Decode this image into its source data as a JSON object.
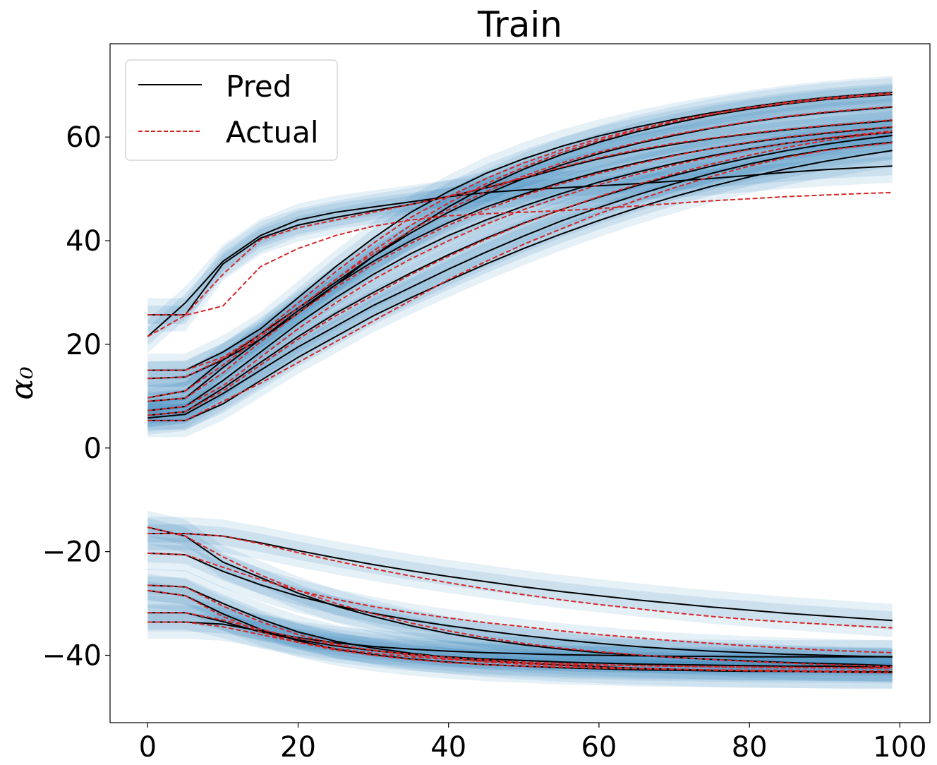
{
  "chart_data": {
    "type": "line",
    "title": "Train",
    "xlabel": "",
    "ylabel": "α₀",
    "xlim": [
      -5,
      104
    ],
    "ylim": [
      -53,
      78
    ],
    "xticks": [
      0,
      20,
      40,
      60,
      80,
      100
    ],
    "yticks": [
      -40,
      -20,
      0,
      20,
      40,
      60
    ],
    "xtick_labels": [
      "0",
      "20",
      "40",
      "60",
      "80",
      "100"
    ],
    "ytick_labels": [
      "−40",
      "−20",
      "0",
      "20",
      "40",
      "60"
    ],
    "grid": false,
    "legend_position": "top-left",
    "legend": [
      {
        "label": "Pred",
        "color": "#000000",
        "style": "solid"
      },
      {
        "label": "Actual",
        "color": "#d62728",
        "style": "dashed"
      }
    ],
    "band_color": "#1f77b4",
    "band_halfwidth": 3.2,
    "x": [
      0,
      5,
      10,
      15,
      20,
      25,
      30,
      35,
      40,
      45,
      50,
      55,
      60,
      65,
      70,
      75,
      80,
      85,
      90,
      95,
      99
    ],
    "series": [
      {
        "pred": [
          21.5,
          28,
          36,
          41,
          44,
          45.5,
          46.5,
          47.5,
          48.5,
          49.3,
          49.8,
          50.2,
          50.6,
          51,
          51.5,
          52,
          52.6,
          53.2,
          53.7,
          54.1,
          54.4
        ],
        "actual": [
          21.5,
          25.6,
          27.4,
          35,
          38.5,
          41,
          42.8,
          44,
          44.8,
          45.2,
          45.5,
          45.8,
          46.2,
          46.7,
          47.2,
          47.7,
          48.1,
          48.5,
          48.8,
          49.1,
          49.3
        ]
      },
      {
        "pred": [
          25.7,
          25.7,
          35.5,
          40.5,
          43,
          44.5,
          45.8,
          47,
          48.5,
          50.2,
          52,
          54,
          55.8,
          57.3,
          58.6,
          59.7,
          60.6,
          61.4,
          62.1,
          62.7,
          63.2
        ],
        "actual": [
          25.7,
          25.7,
          33.5,
          40.2,
          42.5,
          44,
          45.5,
          47,
          48.5,
          50.3,
          52.2,
          54.2,
          56,
          57.5,
          58.8,
          59.8,
          60.7,
          61.5,
          62.2,
          62.8,
          63.3
        ]
      },
      {
        "pred": [
          15,
          15,
          18.5,
          23,
          29,
          35,
          40.5,
          45.5,
          49.5,
          53,
          55.8,
          58.2,
          60.2,
          61.9,
          63.4,
          64.7,
          65.8,
          66.8,
          67.6,
          68.2,
          68.6
        ],
        "actual": [
          15,
          15,
          17.5,
          22,
          28,
          34,
          39.5,
          44.5,
          48.5,
          52,
          55,
          57.5,
          59.7,
          61.5,
          63.1,
          64.5,
          65.7,
          66.7,
          67.5,
          68.1,
          68.5
        ]
      },
      {
        "pred": [
          13.4,
          13.7,
          17,
          21,
          26,
          31.5,
          37,
          42,
          46.5,
          50.5,
          53.8,
          56.6,
          59,
          61,
          62.7,
          64.2,
          65.4,
          66.4,
          67.2,
          67.8,
          68.2
        ],
        "actual": [
          13.4,
          13.7,
          17.2,
          21.5,
          27,
          32.5,
          38,
          43,
          47.3,
          51,
          54.2,
          57,
          59.3,
          61.3,
          63,
          64.4,
          65.6,
          66.5,
          67.3,
          67.9,
          68.3
        ]
      },
      {
        "pred": [
          9.7,
          11,
          17,
          22,
          27,
          32,
          37,
          41.5,
          45.5,
          49,
          52,
          54.6,
          56.8,
          58.7,
          60.3,
          61.7,
          62.9,
          63.9,
          64.7,
          65.3,
          65.8
        ],
        "actual": [
          9.7,
          11,
          16,
          21.5,
          27,
          32.5,
          37.5,
          42,
          46,
          49.5,
          52.5,
          55,
          57.1,
          58.9,
          60.5,
          61.8,
          63,
          64,
          64.8,
          65.4,
          65.9
        ]
      },
      {
        "pred": [
          9,
          9.6,
          15.5,
          21,
          26.5,
          31.5,
          36,
          40,
          43.5,
          46.5,
          49,
          51.3,
          53.3,
          55,
          56.5,
          57.8,
          58.9,
          59.9,
          60.7,
          61.4,
          61.9
        ],
        "actual": [
          9,
          9.6,
          14.5,
          20.5,
          26,
          31,
          35.5,
          39.5,
          43,
          46,
          48.7,
          51,
          53,
          54.8,
          56.4,
          57.8,
          59,
          60,
          60.8,
          61.5,
          62
        ]
      },
      {
        "pred": [
          7.2,
          8,
          13,
          18.5,
          24,
          29,
          33.5,
          37.5,
          41,
          44,
          46.7,
          49.1,
          51.3,
          53.2,
          54.9,
          56.4,
          57.7,
          58.8,
          59.7,
          60.4,
          60.9
        ],
        "actual": [
          7.2,
          8,
          12,
          17.5,
          23,
          28,
          32.5,
          36.5,
          40,
          43.2,
          46,
          48.5,
          50.8,
          52.8,
          54.6,
          56.2,
          57.6,
          58.8,
          59.8,
          60.6,
          61.2
        ]
      },
      {
        "pred": [
          6.3,
          7,
          11.5,
          16.5,
          21.5,
          26,
          30,
          33.8,
          37.3,
          40.5,
          43.4,
          46,
          48.4,
          50.6,
          52.6,
          54.4,
          56,
          57.4,
          58.6,
          59.6,
          60.3
        ],
        "actual": [
          6.3,
          7,
          11,
          16,
          21,
          25.5,
          29.5,
          33.5,
          37,
          40.3,
          43.3,
          46,
          48.5,
          50.8,
          52.9,
          54.8,
          56.5,
          58,
          59.3,
          60.3,
          61
        ]
      },
      {
        "pred": [
          5.8,
          6.5,
          10.5,
          15,
          19.5,
          23.5,
          27.5,
          31,
          34.5,
          37.8,
          40.9,
          43.8,
          46.4,
          48.8,
          51,
          53,
          54.8,
          56.3,
          57.5,
          58.4,
          59
        ]
      },
      {
        "pred": [
          5.3,
          5.3,
          8.5,
          13,
          17.5,
          21.5,
          25.5,
          29,
          32.3,
          35.5,
          38.5,
          41.3,
          43.9,
          46.3,
          48.5,
          50.5,
          52.3,
          53.9,
          55.3,
          56.5,
          57.4
        ],
        "actual": [
          5.3,
          5.3,
          9,
          12.5,
          16.5,
          20.5,
          24.5,
          28.5,
          32.5,
          36,
          39.3,
          42.3,
          45.2,
          47.8,
          50.2,
          52.4,
          54.4,
          56.1,
          57.4,
          58.3,
          58.9
        ]
      },
      {
        "pred": [
          -15.3,
          -17,
          -22,
          -25,
          -28,
          -30.5,
          -32.5,
          -34.3,
          -35.8,
          -37,
          -38,
          -38.8,
          -39.5,
          -40,
          -40.4,
          -40.8,
          -41.1,
          -41.4,
          -41.6,
          -41.8,
          -42
        ],
        "actual": [
          -15.3,
          -17,
          -21,
          -24.5,
          -27.5,
          -30,
          -32,
          -33.8,
          -35.3,
          -36.6,
          -37.7,
          -38.6,
          -39.3,
          -39.9,
          -40.4,
          -40.8,
          -41.2,
          -41.5,
          -41.8,
          -42,
          -42.2
        ]
      },
      {
        "pred": [
          -16.5,
          -16.5,
          -17,
          -18.3,
          -19.8,
          -21.2,
          -22.5,
          -23.7,
          -24.8,
          -25.8,
          -26.8,
          -27.7,
          -28.5,
          -29.3,
          -30,
          -30.7,
          -31.3,
          -31.9,
          -32.4,
          -32.9,
          -33.3
        ],
        "actual": [
          -16.5,
          -16.5,
          -17,
          -18.5,
          -20.2,
          -21.8,
          -23.3,
          -24.7,
          -26,
          -27.2,
          -28.3,
          -29.3,
          -30.2,
          -31,
          -31.8,
          -32.5,
          -33.1,
          -33.6,
          -34,
          -34.4,
          -34.7
        ]
      },
      {
        "pred": [
          -20.3,
          -20.6,
          -23.8,
          -26.4,
          -28.6,
          -30.4,
          -31.9,
          -33.2,
          -34.3,
          -35.3,
          -36.2,
          -37,
          -37.7,
          -38.3,
          -38.8,
          -39.2,
          -39.5,
          -39.8,
          -40,
          -40.2,
          -40.3
        ],
        "actual": [
          -20.3,
          -20.6,
          -23,
          -25.4,
          -27.5,
          -29.2,
          -30.6,
          -31.8,
          -32.8,
          -33.7,
          -34.5,
          -35.3,
          -36,
          -36.6,
          -37.2,
          -37.7,
          -38.2,
          -38.6,
          -39,
          -39.3,
          -39.5
        ]
      },
      {
        "pred": [
          -26.5,
          -26.8,
          -30,
          -33,
          -35.5,
          -37.3,
          -38.6,
          -39.6,
          -40.4,
          -41,
          -41.5,
          -41.9,
          -42.2,
          -42.5,
          -42.7,
          -42.9,
          -43,
          -43.1,
          -43.2,
          -43.3,
          -43.3
        ],
        "actual": [
          -26.5,
          -26.8,
          -30.5,
          -33.5,
          -36,
          -37.8,
          -39.1,
          -40,
          -40.7,
          -41.3,
          -41.7,
          -42,
          -42.3,
          -42.5,
          -42.7,
          -42.9,
          -43,
          -43.1,
          -43.2,
          -43.3,
          -43.4
        ]
      },
      {
        "pred": [
          -27.5,
          -28.5,
          -32,
          -35,
          -37.2,
          -38.8,
          -39.9,
          -40.7,
          -41.3,
          -41.8,
          -42.1,
          -42.4,
          -42.6,
          -42.8,
          -42.9,
          -43,
          -43.1,
          -43.1,
          -43.2,
          -43.2,
          -43.2
        ],
        "actual": [
          -27.5,
          -28.5,
          -32.5,
          -35.5,
          -37.5,
          -39,
          -40,
          -40.8,
          -41.4,
          -41.8,
          -42.1,
          -42.3,
          -42.5,
          -42.6,
          -42.7,
          -42.8,
          -42.9,
          -42.9,
          -43,
          -43,
          -43
        ]
      },
      {
        "pred": [
          -31.8,
          -31.8,
          -33.5,
          -35.5,
          -37,
          -38.2,
          -39.1,
          -39.8,
          -40.3,
          -40.7,
          -41,
          -41.3,
          -41.5,
          -41.7,
          -41.8,
          -41.9,
          -42,
          -42.1,
          -42.1,
          -42.2,
          -42.2
        ],
        "actual": [
          -31.8,
          -31.8,
          -33.2,
          -35,
          -36.7,
          -38,
          -39,
          -39.8,
          -40.4,
          -40.9,
          -41.3,
          -41.6,
          -41.8,
          -42,
          -42.1,
          -42.2,
          -42.3,
          -42.4,
          -42.4,
          -42.5,
          -42.5
        ]
      },
      {
        "pred": [
          -33.6,
          -33.6,
          -34,
          -35.3,
          -36.6,
          -37.6,
          -38.3,
          -38.8,
          -39.2,
          -39.5,
          -39.7,
          -39.9,
          -40,
          -40.1,
          -40.2,
          -40.2,
          -40.3,
          -40.3,
          -40.3,
          -40.3,
          -40.3
        ],
        "actual": [
          -33.6,
          -33.6,
          -34.5,
          -36,
          -37.5,
          -38.7,
          -39.6,
          -40.3,
          -40.8,
          -41.2,
          -41.5,
          -41.7,
          -41.9,
          -42,
          -42.1,
          -42.2,
          -42.3,
          -42.3,
          -42.4,
          -42.4,
          -42.4
        ]
      }
    ]
  }
}
